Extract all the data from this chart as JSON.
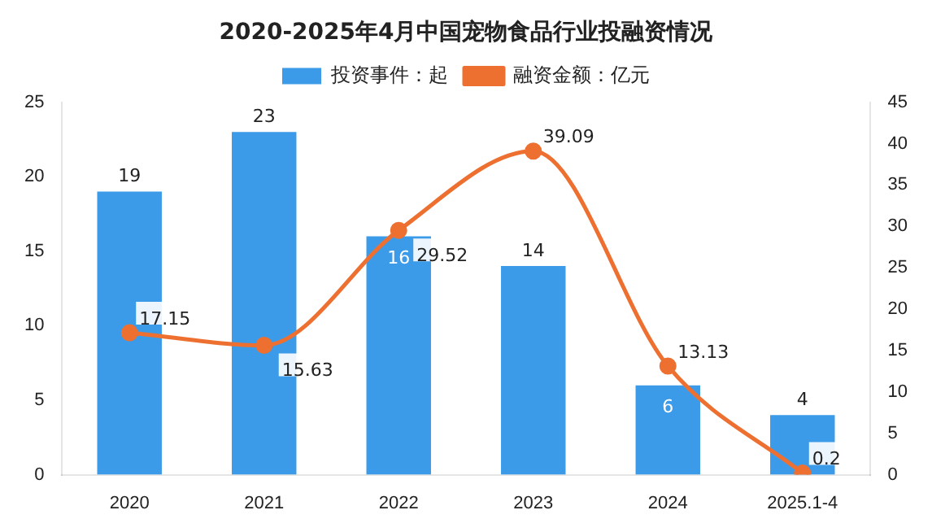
{
  "chart_data": {
    "type": "bar",
    "title": "2020-2025年4月中国宠物食品行业投融资情况",
    "categories": [
      "2020",
      "2021",
      "2022",
      "2023",
      "2024",
      "2025.1-4"
    ],
    "series": [
      {
        "name": "投资事件：起",
        "color": "#3c9be8",
        "values": [
          19,
          23,
          16,
          14,
          6,
          4
        ]
      },
      {
        "name": "融资金额：亿元",
        "type": "line",
        "axis": "y2",
        "color": "#ed7031",
        "values": [
          17.15,
          15.63,
          29.52,
          39.09,
          13.13,
          0.2
        ],
        "marker": "circle"
      }
    ],
    "ylim": [
      0,
      25
    ],
    "yticks": [
      0,
      5,
      10,
      15,
      20,
      25
    ],
    "y2lim": [
      0,
      45
    ],
    "y2ticks": [
      0,
      5,
      10,
      15,
      20,
      25,
      30,
      35,
      40,
      45
    ],
    "legend": "top",
    "grid": false,
    "data_labels": true
  }
}
